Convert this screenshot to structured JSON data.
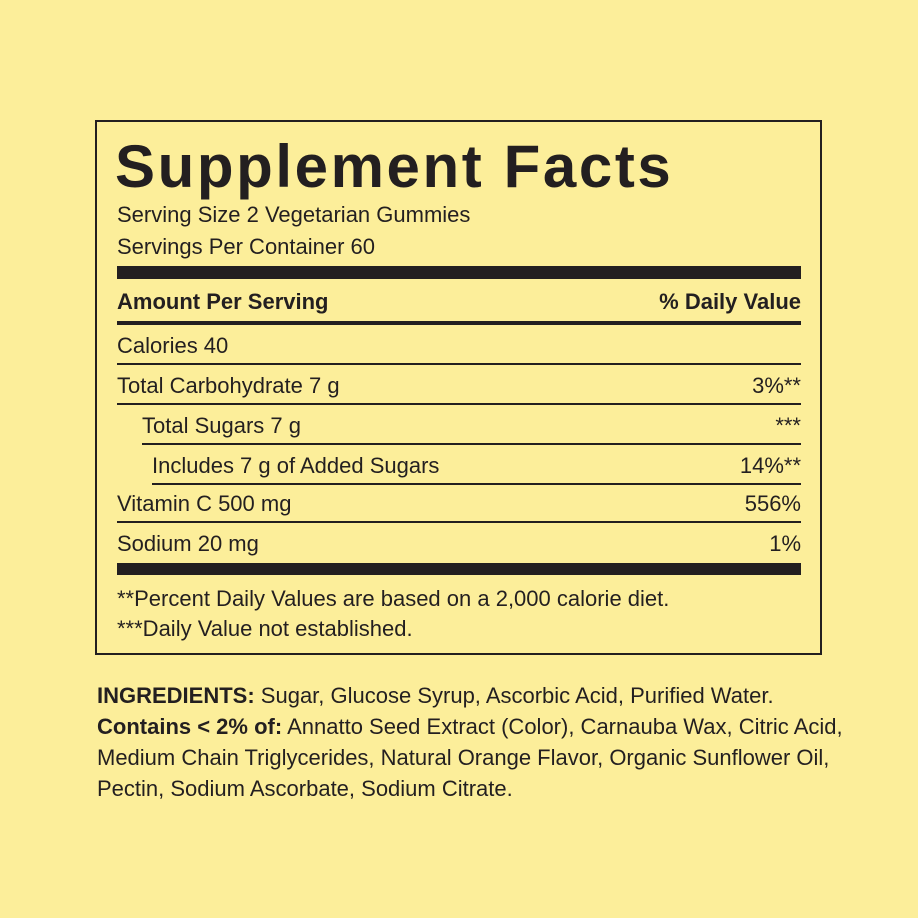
{
  "label": {
    "title": "Supplement Facts",
    "serving_size": "Serving Size 2 Vegetarian Gummies",
    "servings_per_container": "Servings Per Container 60",
    "amount_header": "Amount Per Serving",
    "dv_header": "% Daily Value",
    "rows": [
      {
        "name": "Calories 40",
        "dv": ""
      },
      {
        "name": "Total Carbohydrate 7 g",
        "dv": "3%**"
      },
      {
        "name": "Total Sugars 7 g",
        "dv": "***"
      },
      {
        "name": "Includes 7 g of Added Sugars",
        "dv": "14%**"
      },
      {
        "name": "Vitamin C 500 mg",
        "dv": "556%"
      },
      {
        "name": "Sodium 20 mg",
        "dv": "1%"
      }
    ],
    "footnotes": [
      "**Percent Daily Values are based on a 2,000 calorie diet.",
      "***Daily Value not established."
    ]
  },
  "ingredients": {
    "label": "INGREDIENTS:",
    "text": " Sugar, Glucose Syrup, Ascorbic Acid, Purified Water.",
    "contains_label": "Contains < 2% of:",
    "contains_text": " Annatto Seed Extract (Color), Carnauba Wax, Citric Acid, Medium Chain Triglycerides, Natural Orange Flavor, Organic Sunflower Oil, Pectin, Sodium Ascorbate, Sodium Citrate."
  },
  "colors": {
    "background": "#fcee9a",
    "text": "#231f20"
  }
}
